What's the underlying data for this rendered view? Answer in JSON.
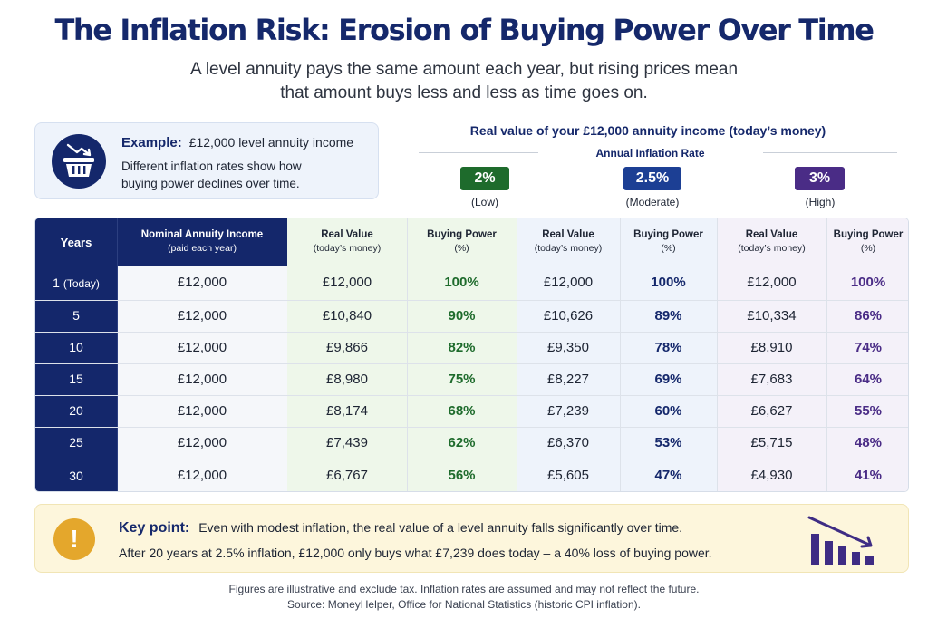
{
  "title": "The Inflation Risk: Erosion of Buying Power Over Time",
  "subtitle_line1": "A level annuity pays the same amount each year, but rising prices mean",
  "subtitle_line2": "that amount buys less and less as time goes on.",
  "example": {
    "icon": "shopping-basket-decline-icon",
    "label": "Example:",
    "value": "£12,000 level annuity income",
    "desc_line1": "Different inflation rates show how",
    "desc_line2": "buying power declines over time."
  },
  "real_value_title": "Real value of your £12,000 annuity income (today’s money)",
  "rate_title": "Annual Inflation Rate",
  "rates": [
    {
      "value": "2%",
      "label": "(Low)",
      "color": "#1e6b2c"
    },
    {
      "value": "2.5%",
      "label": "(Moderate)",
      "color": "#1c3f94"
    },
    {
      "value": "3%",
      "label": "(High)",
      "color": "#4a2c86"
    }
  ],
  "table": {
    "headers": {
      "years": "Years",
      "nominal_line1": "Nominal Annuity Income",
      "nominal_line2": "(paid each year)",
      "real_line1": "Real Value",
      "real_line2": "(today’s money)",
      "bp_line1": "Buying Power",
      "bp_line2": "(%)"
    },
    "rows": [
      {
        "year": "1",
        "year_note": "(Today)",
        "nominal": "£12,000",
        "r2": "£12,000",
        "p2": "100%",
        "r25": "£12,000",
        "p25": "100%",
        "r3": "£12,000",
        "p3": "100%"
      },
      {
        "year": "5",
        "year_note": "",
        "nominal": "£12,000",
        "r2": "£10,840",
        "p2": "90%",
        "r25": "£10,626",
        "p25": "89%",
        "r3": "£10,334",
        "p3": "86%"
      },
      {
        "year": "10",
        "year_note": "",
        "nominal": "£12,000",
        "r2": "£9,866",
        "p2": "82%",
        "r25": "£9,350",
        "p25": "78%",
        "r3": "£8,910",
        "p3": "74%"
      },
      {
        "year": "15",
        "year_note": "",
        "nominal": "£12,000",
        "r2": "£8,980",
        "p2": "75%",
        "r25": "£8,227",
        "p25": "69%",
        "r3": "£7,683",
        "p3": "64%"
      },
      {
        "year": "20",
        "year_note": "",
        "nominal": "£12,000",
        "r2": "£8,174",
        "p2": "68%",
        "r25": "£7,239",
        "p25": "60%",
        "r3": "£6,627",
        "p3": "55%"
      },
      {
        "year": "25",
        "year_note": "",
        "nominal": "£12,000",
        "r2": "£7,439",
        "p2": "62%",
        "r25": "£6,370",
        "p25": "53%",
        "r3": "£5,715",
        "p3": "48%"
      },
      {
        "year": "30",
        "year_note": "",
        "nominal": "£12,000",
        "r2": "£6,767",
        "p2": "56%",
        "r25": "£5,605",
        "p25": "47%",
        "r3": "£4,930",
        "p3": "41%"
      }
    ]
  },
  "key_point": {
    "icon": "exclamation-icon",
    "label": "Key point:",
    "line1": "Even with modest inflation, the real value of a level annuity falls significantly over time.",
    "line2": "After 20 years at 2.5% inflation, £12,000 only buys what £7,239 does today – a 40% loss of buying power.",
    "chart_icon": "declining-bars-icon"
  },
  "footnote_line1": "Figures are illustrative and exclude tax. Inflation rates are assumed and may not reflect the future.",
  "footnote_line2": "Source: MoneyHelper, Office for National Statistics (historic CPI inflation)."
}
